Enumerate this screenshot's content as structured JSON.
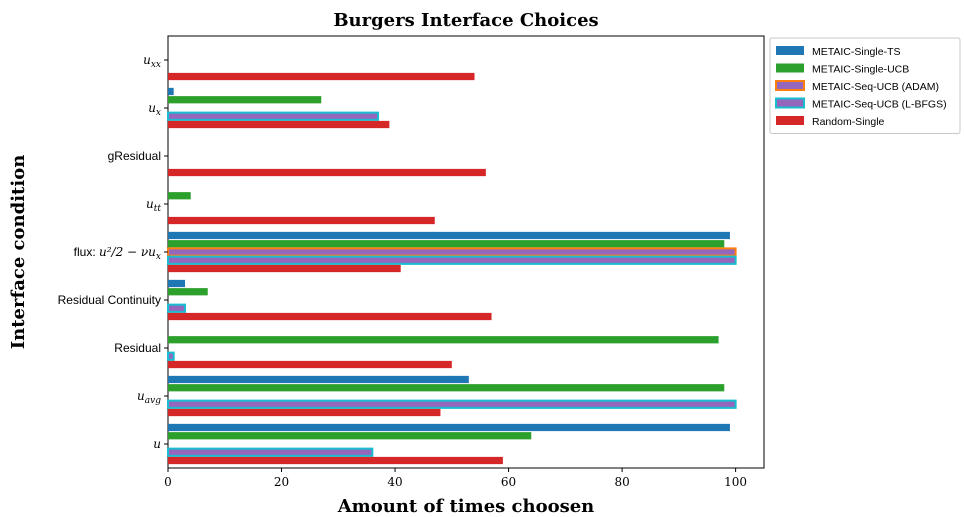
{
  "chart_data": {
    "type": "bar",
    "orientation": "horizontal",
    "title": "Burgers Interface Choices",
    "xlabel": "Amount of times choosen",
    "ylabel": "Interface condition",
    "xlim": [
      0,
      105
    ],
    "xticks": [
      0,
      20,
      40,
      60,
      80,
      100
    ],
    "grid": false,
    "legend_position": "outside-top-right",
    "categories": [
      "u",
      "u_avg",
      "Residual",
      "Residual Continuity",
      "flux: u²/2 − νu_x",
      "u_tt",
      "gResidual",
      "u_x",
      "u_xx"
    ],
    "category_labels": [
      {
        "text": "u",
        "math": true
      },
      {
        "text": "u",
        "sub": "avg",
        "math": true
      },
      {
        "text": "Residual",
        "math": false
      },
      {
        "text": "Residual Continuity",
        "math": false
      },
      {
        "text": "flux: ",
        "math_suffix": "u²/2 − νu",
        "sub": "x"
      },
      {
        "text": "u",
        "sub": "tt",
        "math": true
      },
      {
        "text": "gResidual",
        "math": false
      },
      {
        "text": "u",
        "sub": "x",
        "math": true
      },
      {
        "text": "u",
        "sub": "xx",
        "math": true
      }
    ],
    "series": [
      {
        "name": "METAIC-Single-TS",
        "color": "#1f77b4",
        "edge": null,
        "values": [
          99,
          53,
          0,
          3,
          99,
          0,
          0,
          1,
          0
        ]
      },
      {
        "name": "METAIC-Single-UCB",
        "color": "#2ca02c",
        "edge": null,
        "values": [
          64,
          98,
          97,
          7,
          98,
          4,
          0,
          27,
          0
        ]
      },
      {
        "name": "METAIC-Seq-UCB (ADAM)",
        "color": "#9467bd",
        "edge": "#ff7f0e",
        "values": [
          0,
          0,
          0,
          0,
          100,
          0,
          0,
          0,
          0
        ]
      },
      {
        "name": "METAIC-Seq-UCB (L-BFGS)",
        "color": "#9467bd",
        "edge": "#17becf",
        "values": [
          36,
          100,
          1,
          3,
          100,
          0,
          0,
          37,
          0
        ]
      },
      {
        "name": "Random-Single",
        "color": "#d62728",
        "edge": null,
        "values": [
          59,
          48,
          50,
          57,
          41,
          47,
          56,
          39,
          54
        ]
      }
    ]
  }
}
